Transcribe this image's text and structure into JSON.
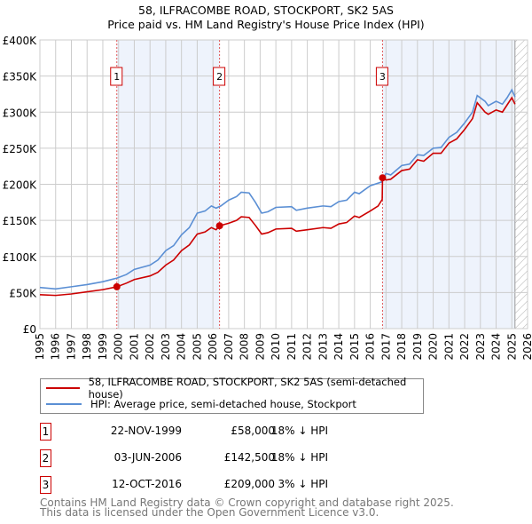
{
  "chart_data": {
    "type": "line",
    "title": "58, ILFRACOMBE ROAD, STOCKPORT, SK2 5AS",
    "subtitle": "Price paid vs. HM Land Registry's House Price Index (HPI)",
    "xlim": [
      1995,
      2026
    ],
    "ylim": [
      0,
      400000
    ],
    "grid": true,
    "y_ticks": [
      "£0",
      "£50K",
      "£100K",
      "£150K",
      "£200K",
      "£250K",
      "£300K",
      "£350K",
      "£400K"
    ],
    "x_ticks": [
      "1995",
      "1996",
      "1997",
      "1998",
      "1999",
      "2000",
      "2001",
      "2002",
      "2003",
      "2004",
      "2005",
      "2006",
      "2007",
      "2008",
      "2009",
      "2010",
      "2011",
      "2012",
      "2013",
      "2014",
      "2015",
      "2016",
      "2017",
      "2018",
      "2019",
      "2020",
      "2021",
      "2022",
      "2023",
      "2024",
      "2025",
      "2026"
    ],
    "series": [
      {
        "name": "58, ILFRACOMBE ROAD, STOCKPORT, SK2 5AS (semi-detached house)",
        "color": "#cc0000",
        "points": [
          [
            1995,
            47
          ],
          [
            1996,
            46
          ],
          [
            1997,
            48
          ],
          [
            1998,
            51
          ],
          [
            1999,
            54
          ],
          [
            1999.9,
            58
          ],
          [
            2000.5,
            63
          ],
          [
            2001,
            68
          ],
          [
            2002,
            73
          ],
          [
            2002.5,
            78
          ],
          [
            2003,
            88
          ],
          [
            2003.5,
            95
          ],
          [
            2004,
            108
          ],
          [
            2004.5,
            116
          ],
          [
            2005,
            131
          ],
          [
            2005.5,
            134
          ],
          [
            2005.9,
            140
          ],
          [
            2006.2,
            137
          ],
          [
            2006.42,
            142.5
          ],
          [
            2007,
            146
          ],
          [
            2007.5,
            150
          ],
          [
            2007.8,
            155
          ],
          [
            2008.3,
            154
          ],
          [
            2008.7,
            143
          ],
          [
            2009.1,
            131
          ],
          [
            2009.5,
            133
          ],
          [
            2010,
            138
          ],
          [
            2011,
            139
          ],
          [
            2011.3,
            135
          ],
          [
            2012,
            137
          ],
          [
            2013,
            140
          ],
          [
            2013.5,
            139
          ],
          [
            2014,
            145
          ],
          [
            2014.5,
            147
          ],
          [
            2015,
            156
          ],
          [
            2015.3,
            154
          ],
          [
            2016,
            163
          ],
          [
            2016.5,
            170
          ],
          [
            2016.76,
            179
          ],
          [
            2016.78,
            209
          ],
          [
            2017,
            206
          ],
          [
            2017.3,
            207
          ],
          [
            2018,
            219
          ],
          [
            2018.5,
            221
          ],
          [
            2019,
            234
          ],
          [
            2019.4,
            232
          ],
          [
            2020,
            243
          ],
          [
            2020.5,
            243
          ],
          [
            2021,
            257
          ],
          [
            2021.5,
            263
          ],
          [
            2022,
            276
          ],
          [
            2022.5,
            291
          ],
          [
            2022.8,
            313
          ],
          [
            2023.3,
            300
          ],
          [
            2023.5,
            297
          ],
          [
            2024,
            303
          ],
          [
            2024.4,
            300
          ],
          [
            2024.7,
            310
          ],
          [
            2025.0,
            320
          ],
          [
            2025.2,
            311
          ]
        ]
      },
      {
        "name": "HPI: Average price, semi-detached house, Stockport",
        "color": "#5b8fd4",
        "points": [
          [
            1995,
            57
          ],
          [
            1996,
            55
          ],
          [
            1997,
            58
          ],
          [
            1998,
            61
          ],
          [
            1999,
            65
          ],
          [
            1999.9,
            70
          ],
          [
            2000.5,
            75
          ],
          [
            2001,
            82
          ],
          [
            2002,
            88
          ],
          [
            2002.5,
            95
          ],
          [
            2003,
            108
          ],
          [
            2003.5,
            115
          ],
          [
            2004,
            130
          ],
          [
            2004.5,
            140
          ],
          [
            2005,
            160
          ],
          [
            2005.5,
            163
          ],
          [
            2005.9,
            170
          ],
          [
            2006.2,
            167
          ],
          [
            2006.5,
            170
          ],
          [
            2007,
            178
          ],
          [
            2007.5,
            183
          ],
          [
            2007.8,
            189
          ],
          [
            2008.3,
            188
          ],
          [
            2008.7,
            175
          ],
          [
            2009.1,
            160
          ],
          [
            2009.5,
            162
          ],
          [
            2010,
            168
          ],
          [
            2011,
            169
          ],
          [
            2011.3,
            164
          ],
          [
            2012,
            167
          ],
          [
            2013,
            170
          ],
          [
            2013.5,
            169
          ],
          [
            2014,
            176
          ],
          [
            2014.5,
            178
          ],
          [
            2015,
            189
          ],
          [
            2015.3,
            187
          ],
          [
            2016,
            198
          ],
          [
            2016.7,
            203
          ],
          [
            2017,
            215
          ],
          [
            2017.3,
            213
          ],
          [
            2018,
            226
          ],
          [
            2018.5,
            228
          ],
          [
            2019,
            241
          ],
          [
            2019.4,
            240
          ],
          [
            2020,
            250
          ],
          [
            2020.5,
            251
          ],
          [
            2021,
            265
          ],
          [
            2021.5,
            272
          ],
          [
            2022,
            285
          ],
          [
            2022.5,
            300
          ],
          [
            2022.8,
            323
          ],
          [
            2023.3,
            315
          ],
          [
            2023.5,
            309
          ],
          [
            2024,
            315
          ],
          [
            2024.4,
            311
          ],
          [
            2024.7,
            320
          ],
          [
            2025.0,
            331
          ],
          [
            2025.2,
            321
          ]
        ]
      }
    ],
    "sales": [
      {
        "label": "1",
        "year": 1999.89,
        "price": 58000
      },
      {
        "label": "2",
        "year": 2006.42,
        "price": 142500
      },
      {
        "label": "3",
        "year": 2016.78,
        "price": 209000
      }
    ],
    "shaded_ranges": [
      [
        1999.89,
        2006.42
      ],
      [
        2016.78,
        2025.2
      ]
    ],
    "forecast_hatch_from": 2025.2
  },
  "legend": {
    "property": "58, ILFRACOMBE ROAD, STOCKPORT, SK2 5AS (semi-detached house)",
    "hpi": "HPI: Average price, semi-detached house, Stockport"
  },
  "transactions": [
    {
      "num": "1",
      "date": "22-NOV-1999",
      "price": "£58,000",
      "hpi": "18% ↓ HPI"
    },
    {
      "num": "2",
      "date": "03-JUN-2006",
      "price": "£142,500",
      "hpi": "18% ↓ HPI"
    },
    {
      "num": "3",
      "date": "12-OCT-2016",
      "price": "£209,000",
      "hpi": "3% ↓ HPI"
    }
  ],
  "footer": {
    "line1": "Contains HM Land Registry data © Crown copyright and database right 2025.",
    "line2": "This data is licensed under the Open Government Licence v3.0."
  }
}
